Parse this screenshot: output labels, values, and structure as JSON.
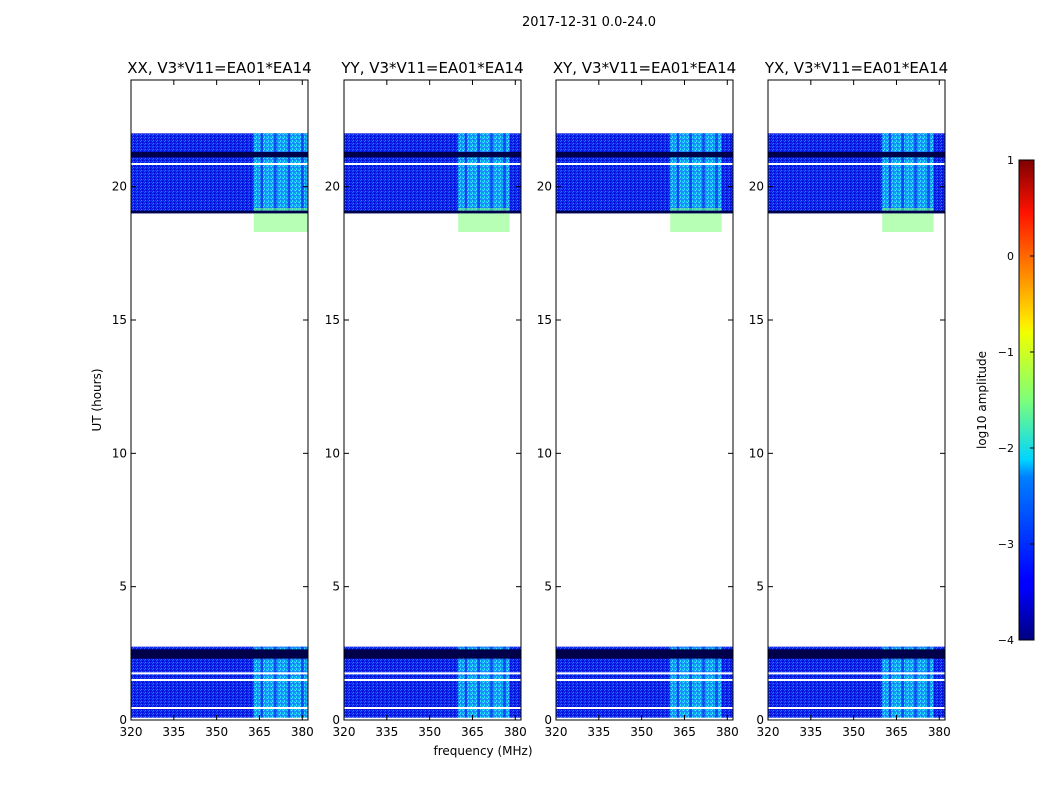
{
  "figure": {
    "suptitle": "2017-12-31 0.0-24.0"
  },
  "chart_data": {
    "type": "heatmap",
    "xlabel": "frequency (MHz)",
    "ylabel": "UT (hours)",
    "xlim": [
      320,
      382
    ],
    "ylim": [
      0,
      24
    ],
    "xticks": [
      320,
      335,
      350,
      365,
      380
    ],
    "yticks": [
      0,
      5,
      10,
      15,
      20
    ],
    "panels": [
      {
        "title": "XX, V3*V11=EA01*EA14",
        "bright_channels_MHz": [
          363,
          382
        ]
      },
      {
        "title": "YY, V3*V11=EA01*EA14",
        "bright_channels_MHz": [
          360,
          378
        ]
      },
      {
        "title": "XY, V3*V11=EA01*EA14",
        "bright_channels_MHz": [
          360,
          378
        ]
      },
      {
        "title": "YX, V3*V11=EA01*EA14",
        "bright_channels_MHz": [
          360,
          378
        ]
      }
    ],
    "data_blocks_hours": [
      {
        "start": 0.0,
        "end": 2.75,
        "background_log_amp": -3.3
      },
      {
        "start": 19.0,
        "end": 22.0,
        "background_log_amp": -3.3
      }
    ],
    "gaps_hours": [
      0.05,
      0.45,
      1.5,
      1.75,
      20.85
    ],
    "dark_bands_hours": [
      [
        2.3,
        2.65
      ],
      [
        19.0,
        19.1
      ],
      [
        21.1,
        21.3
      ]
    ],
    "colorbar": {
      "label": "log10 amplitude",
      "colormap": "jet",
      "range": [
        -4,
        1
      ],
      "ticks": [
        "−4",
        "−3",
        "−2",
        "−1",
        "0",
        "1"
      ]
    }
  }
}
